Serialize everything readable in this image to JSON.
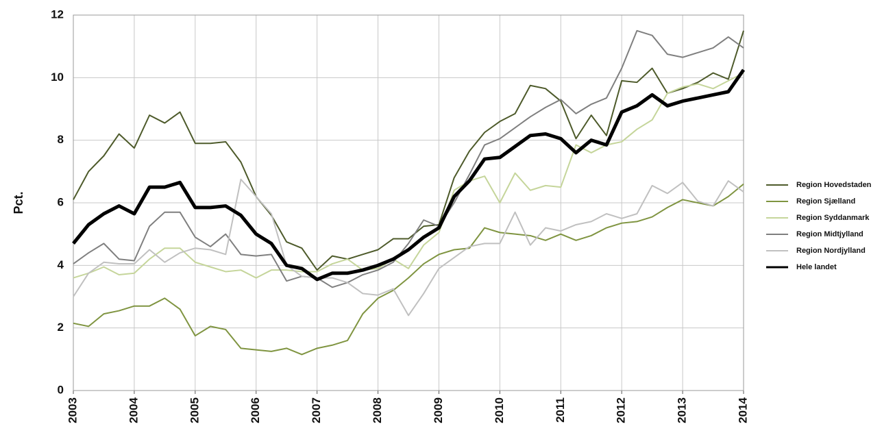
{
  "chart_data": {
    "type": "line",
    "y_label": "Pct.",
    "x": [
      2003,
      2003.25,
      2003.5,
      2003.75,
      2004,
      2004.25,
      2004.5,
      2004.75,
      2005,
      2005.25,
      2005.5,
      2005.75,
      2006,
      2006.25,
      2006.5,
      2006.75,
      2007,
      2007.25,
      2007.5,
      2007.75,
      2008,
      2008.25,
      2008.5,
      2008.75,
      2009,
      2009.25,
      2009.5,
      2009.75,
      2010,
      2010.25,
      2010.5,
      2010.75,
      2011,
      2011.25,
      2011.5,
      2011.75,
      2012,
      2012.25,
      2012.5,
      2012.75,
      2013,
      2013.25,
      2013.5,
      2013.75,
      2014
    ],
    "xlim": [
      2003,
      2014
    ],
    "xticks": [
      2003,
      2004,
      2005,
      2006,
      2007,
      2008,
      2009,
      2010,
      2011,
      2012,
      2013,
      2014
    ],
    "ylim": [
      0,
      12
    ],
    "yticks": [
      0,
      2,
      4,
      6,
      8,
      10,
      12
    ],
    "grid": true,
    "series": [
      {
        "name": "Region Hovedstaden",
        "color": "#4d5a2a",
        "width": 2,
        "values": [
          6.1,
          7.0,
          7.5,
          8.2,
          7.75,
          8.8,
          8.55,
          8.9,
          7.9,
          7.9,
          7.95,
          7.3,
          6.2,
          5.6,
          4.75,
          4.55,
          3.85,
          4.3,
          4.2,
          4.35,
          4.5,
          4.85,
          4.85,
          5.25,
          5.3,
          6.8,
          7.65,
          8.25,
          8.6,
          8.85,
          9.75,
          9.65,
          9.25,
          8.05,
          8.8,
          8.15,
          9.9,
          9.85,
          10.3,
          9.5,
          9.65,
          9.85,
          10.15,
          9.95,
          11.5
        ]
      },
      {
        "name": "Region Sjælland",
        "color": "#7f9440",
        "width": 2,
        "values": [
          2.15,
          2.05,
          2.45,
          2.55,
          2.7,
          2.7,
          2.95,
          2.6,
          1.75,
          2.05,
          1.95,
          1.35,
          1.3,
          1.25,
          1.35,
          1.15,
          1.35,
          1.45,
          1.6,
          2.45,
          2.95,
          3.2,
          3.6,
          4.05,
          4.35,
          4.5,
          4.55,
          5.2,
          5.05,
          5.0,
          4.95,
          4.8,
          5.0,
          4.8,
          4.95,
          5.2,
          5.35,
          5.4,
          5.55,
          5.85,
          6.1,
          6.0,
          5.9,
          6.2,
          6.6
        ]
      },
      {
        "name": "Region Syddanmark",
        "color": "#c5d59a",
        "width": 2,
        "values": [
          3.6,
          3.75,
          3.95,
          3.7,
          3.75,
          4.2,
          4.55,
          4.55,
          4.1,
          3.95,
          3.8,
          3.85,
          3.6,
          3.85,
          3.85,
          3.8,
          3.8,
          4.05,
          4.2,
          3.85,
          3.9,
          4.2,
          3.9,
          4.65,
          5.05,
          6.4,
          6.7,
          6.85,
          6.0,
          6.95,
          6.4,
          6.55,
          6.5,
          7.85,
          7.6,
          7.85,
          7.95,
          8.35,
          8.65,
          9.5,
          9.7,
          9.8,
          9.65,
          9.9,
          10.15
        ]
      },
      {
        "name": "Region Midtjylland",
        "color": "#7f7f7f",
        "width": 2,
        "values": [
          4.05,
          4.4,
          4.7,
          4.2,
          4.15,
          5.25,
          5.7,
          5.7,
          4.9,
          4.6,
          5.0,
          4.35,
          4.3,
          4.35,
          3.5,
          3.65,
          3.6,
          3.3,
          3.45,
          3.7,
          3.85,
          4.1,
          4.7,
          5.45,
          5.25,
          6.0,
          6.9,
          7.85,
          8.05,
          8.4,
          8.75,
          9.05,
          9.3,
          8.85,
          9.15,
          9.35,
          10.3,
          11.5,
          11.35,
          10.75,
          10.65,
          10.8,
          10.95,
          11.3,
          10.95
        ]
      },
      {
        "name": "Region Nordjylland",
        "color": "#c0c0c0",
        "width": 2,
        "values": [
          3.0,
          3.75,
          4.1,
          4.05,
          4.05,
          4.5,
          4.1,
          4.4,
          4.55,
          4.5,
          4.35,
          6.75,
          6.2,
          5.65,
          4.0,
          3.65,
          3.6,
          3.6,
          3.45,
          3.1,
          3.05,
          3.25,
          2.4,
          3.1,
          3.9,
          4.25,
          4.6,
          4.7,
          4.7,
          5.7,
          4.65,
          5.2,
          5.1,
          5.3,
          5.4,
          5.65,
          5.5,
          5.65,
          6.55,
          6.3,
          6.65,
          6.05,
          5.9,
          6.7,
          6.35
        ]
      },
      {
        "name": "Hele landet",
        "color": "#000000",
        "width": 5,
        "values": [
          4.7,
          5.3,
          5.65,
          5.9,
          5.65,
          6.5,
          6.5,
          6.65,
          5.85,
          5.85,
          5.9,
          5.6,
          5.0,
          4.7,
          4.0,
          3.9,
          3.55,
          3.75,
          3.75,
          3.85,
          4.0,
          4.2,
          4.5,
          4.9,
          5.2,
          6.2,
          6.7,
          7.4,
          7.45,
          7.8,
          8.15,
          8.2,
          8.05,
          7.6,
          8.0,
          7.85,
          8.9,
          9.1,
          9.45,
          9.1,
          9.25,
          9.35,
          9.45,
          9.55,
          10.25
        ]
      }
    ]
  }
}
